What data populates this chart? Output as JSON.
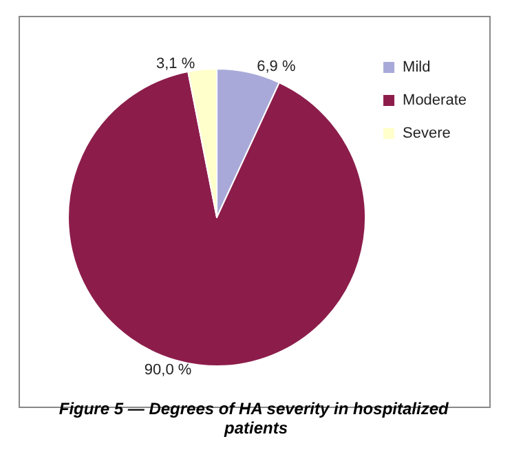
{
  "chart_data": {
    "type": "pie",
    "title": "Figure 5 — Degrees of HA severity in hospitalized patients",
    "categories": [
      "Mild",
      "Moderate",
      "Severe"
    ],
    "values": [
      6.9,
      90.0,
      3.1
    ],
    "value_labels": [
      "6,9 %",
      "90,0 %",
      "3,1 %"
    ],
    "colors": [
      "#a9a9d9",
      "#8c1d4b",
      "#ffffcc"
    ],
    "legend": "top right"
  }
}
